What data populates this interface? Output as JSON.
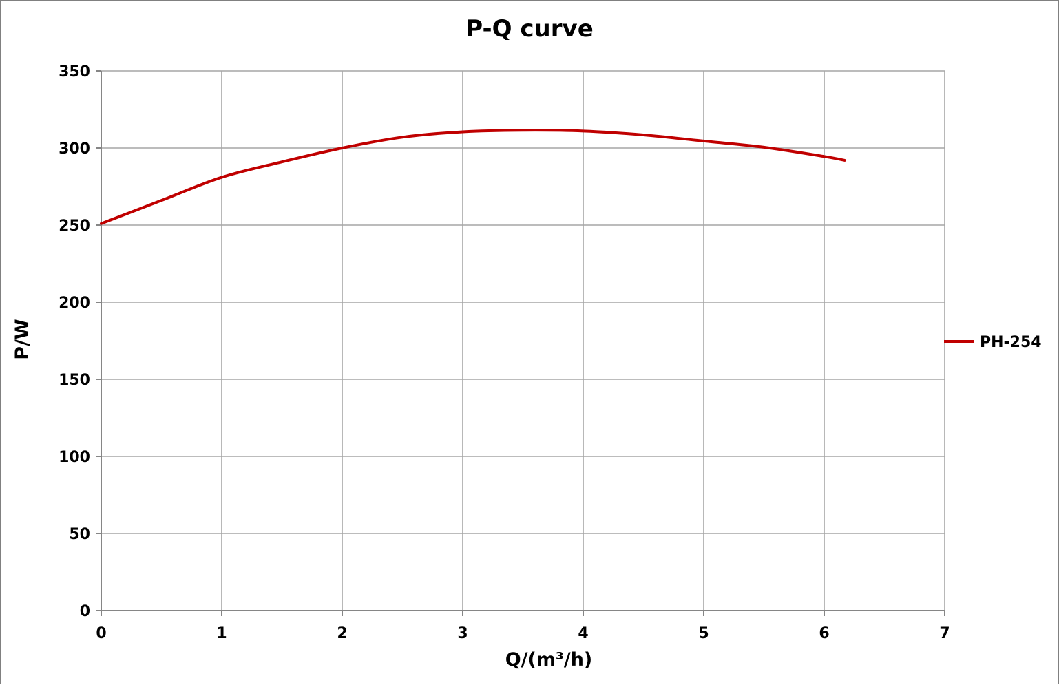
{
  "chart_data": {
    "type": "line",
    "title": "P-Q  curve",
    "xlabel": "Q/(m³/h)",
    "ylabel": "P/W",
    "xlim": [
      0,
      7
    ],
    "ylim": [
      0,
      350
    ],
    "x_ticks": [
      0,
      1,
      2,
      3,
      4,
      5,
      6,
      7
    ],
    "y_ticks": [
      0,
      50,
      100,
      150,
      200,
      250,
      300,
      350
    ],
    "grid": true,
    "legend_position": "right",
    "series": [
      {
        "name": "PH-254",
        "color": "#c00000",
        "x": [
          0,
          0.5,
          1.0,
          1.5,
          2.0,
          2.5,
          3.0,
          3.5,
          4.0,
          4.5,
          5.0,
          5.5,
          6.0,
          6.17
        ],
        "y": [
          251,
          266,
          281,
          291,
          300,
          307,
          310.5,
          311.5,
          311,
          308.5,
          304.5,
          300.5,
          294.5,
          292
        ]
      }
    ]
  }
}
